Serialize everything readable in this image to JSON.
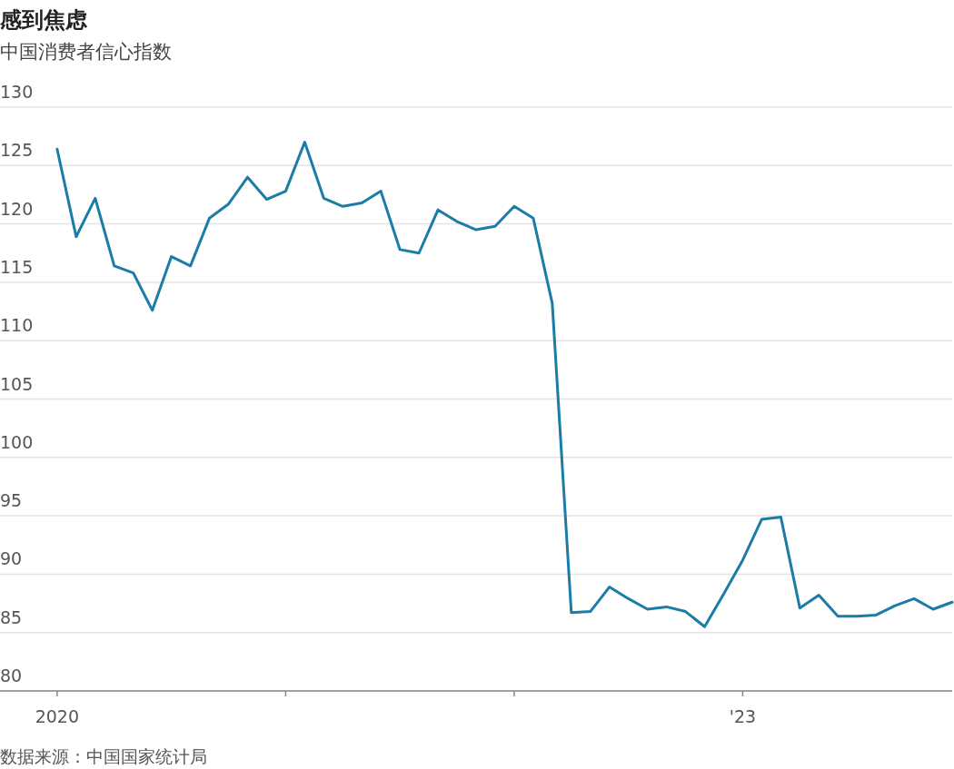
{
  "chart_data": {
    "type": "line",
    "title": "感到焦虑",
    "subtitle": "中国消费者信心指数",
    "annotations": [
      "数据来源：中国国家统计局"
    ],
    "x": [
      "2020-01",
      "2020-02",
      "2020-03",
      "2020-04",
      "2020-05",
      "2020-06",
      "2020-07",
      "2020-08",
      "2020-09",
      "2020-10",
      "2020-11",
      "2020-12",
      "2021-01",
      "2021-02",
      "2021-03",
      "2021-04",
      "2021-05",
      "2021-06",
      "2021-07",
      "2021-08",
      "2021-09",
      "2021-10",
      "2021-11",
      "2021-12",
      "2022-01",
      "2022-02",
      "2022-03",
      "2022-04",
      "2022-05",
      "2022-06",
      "2022-07",
      "2022-08",
      "2022-09",
      "2022-10",
      "2022-11",
      "2022-12",
      "2023-01",
      "2023-02",
      "2023-03",
      "2023-04",
      "2023-05",
      "2023-06",
      "2023-07",
      "2023-08",
      "2023-09",
      "2023-10",
      "2023-11",
      "2023-12"
    ],
    "series": [
      {
        "color": "#1b7ca6",
        "values": [
          126.4,
          118.9,
          122.2,
          116.4,
          115.8,
          112.6,
          117.2,
          116.4,
          120.5,
          121.7,
          124.0,
          122.1,
          122.8,
          127.0,
          122.2,
          121.5,
          121.8,
          122.8,
          117.8,
          117.5,
          121.2,
          120.2,
          119.5,
          119.8,
          121.5,
          120.5,
          113.2,
          86.7,
          86.8,
          88.9,
          87.9,
          87.0,
          87.2,
          86.8,
          85.5,
          88.3,
          91.2,
          94.7,
          94.9,
          87.1,
          88.2,
          86.4,
          86.4,
          86.5,
          87.3,
          87.9,
          87.0,
          87.6
        ]
      }
    ],
    "xlim": [
      "2019-10",
      "2023-12"
    ],
    "xticks": [
      {
        "value": "2020-01",
        "label": "2020"
      },
      {
        "value": "2021-01",
        "label": null
      },
      {
        "value": "2022-01",
        "label": null
      },
      {
        "value": "2023-01",
        "label": "'23"
      }
    ],
    "ylim": [
      80,
      130
    ],
    "yticks": [
      80,
      85,
      90,
      95,
      100,
      105,
      110,
      115,
      120,
      125,
      130
    ],
    "grid": "y",
    "marker": "none",
    "line_style": "solid"
  }
}
